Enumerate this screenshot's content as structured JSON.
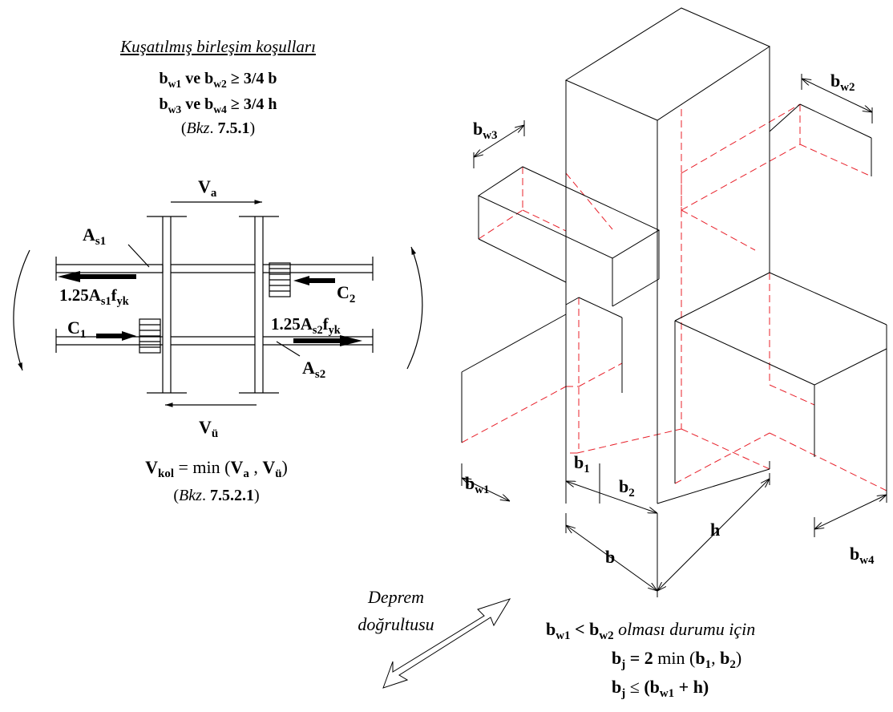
{
  "conditions": {
    "title": "Kuşatılmış birleşim koşulları",
    "cond1": {
      "a": "b",
      "a_sub": "w1",
      "mid": " ve ",
      "b": "b",
      "b_sub": "w2",
      "rest": " ≥ 3/4 b"
    },
    "cond2": {
      "a": "b",
      "a_sub": "w3",
      "mid": " ve ",
      "b": "b",
      "b_sub": "w4",
      "rest": " ≥ 3/4 h"
    },
    "ref": {
      "open": "(",
      "bkz": "Bkz",
      "dot": ". ",
      "num": "7.5.1",
      "close": ")"
    }
  },
  "joint": {
    "Va": {
      "v": "V",
      "sub": "a"
    },
    "Vu": {
      "v": "V",
      "sub": "ü"
    },
    "As1": {
      "v": "A",
      "sub": "s1"
    },
    "As2": {
      "v": "A",
      "sub": "s2"
    },
    "C1": {
      "v": "C",
      "sub": "1"
    },
    "C2": {
      "v": "C",
      "sub": "2"
    },
    "F1": {
      "p1": "1.25A",
      "s1": "s1",
      "p2": "f",
      "s2": "yk"
    },
    "F2": {
      "p1": "1.25A",
      "s1": "s2",
      "p2": "f",
      "s2": "yk"
    }
  },
  "vkol": {
    "v": "V",
    "sub": "kol",
    "eq": " = min (",
    "a": "V",
    "a_sub": "a",
    "sep": " , ",
    "b": "V",
    "b_sub": "ü",
    "close": ")"
  },
  "vkol_ref": {
    "open": "(",
    "bkz": "Bkz",
    "dot": ". ",
    "num": "7.5.2.1",
    "close": ")"
  },
  "iso_labels": {
    "bw1": {
      "v": "b",
      "sub": "w1"
    },
    "bw2": {
      "v": "b",
      "sub": "w2"
    },
    "bw3": {
      "v": "b",
      "sub": "w3"
    },
    "bw4": {
      "v": "b",
      "sub": "w4"
    },
    "b1": {
      "v": "b",
      "sub": "1"
    },
    "b2": {
      "v": "b",
      "sub": "2"
    },
    "b": "b",
    "h": "h"
  },
  "deprem": {
    "line1": "Deprem",
    "line2": "doğrultusu"
  },
  "formulas": {
    "f1": {
      "a": "b",
      "a_sub": "w1",
      "lt": " < ",
      "b": "b",
      "b_sub": "w2",
      "text": "  olması durumu için"
    },
    "f2": {
      "a": "b",
      "a_sub": "j",
      "rest": " = 2 ",
      "min": "min",
      "open": " (",
      "b1": "b",
      "b1_sub": "1",
      "sep": ", ",
      "b2": "b",
      "b2_sub": "2",
      "close": ")"
    },
    "f3": {
      "a": "b",
      "a_sub": "j",
      "le": " ≤ ",
      "rest": "(b",
      "r_sub": "w1",
      "end": " + h)"
    }
  },
  "colors": {
    "solid": "#000000",
    "hidden": "#e8202a"
  }
}
